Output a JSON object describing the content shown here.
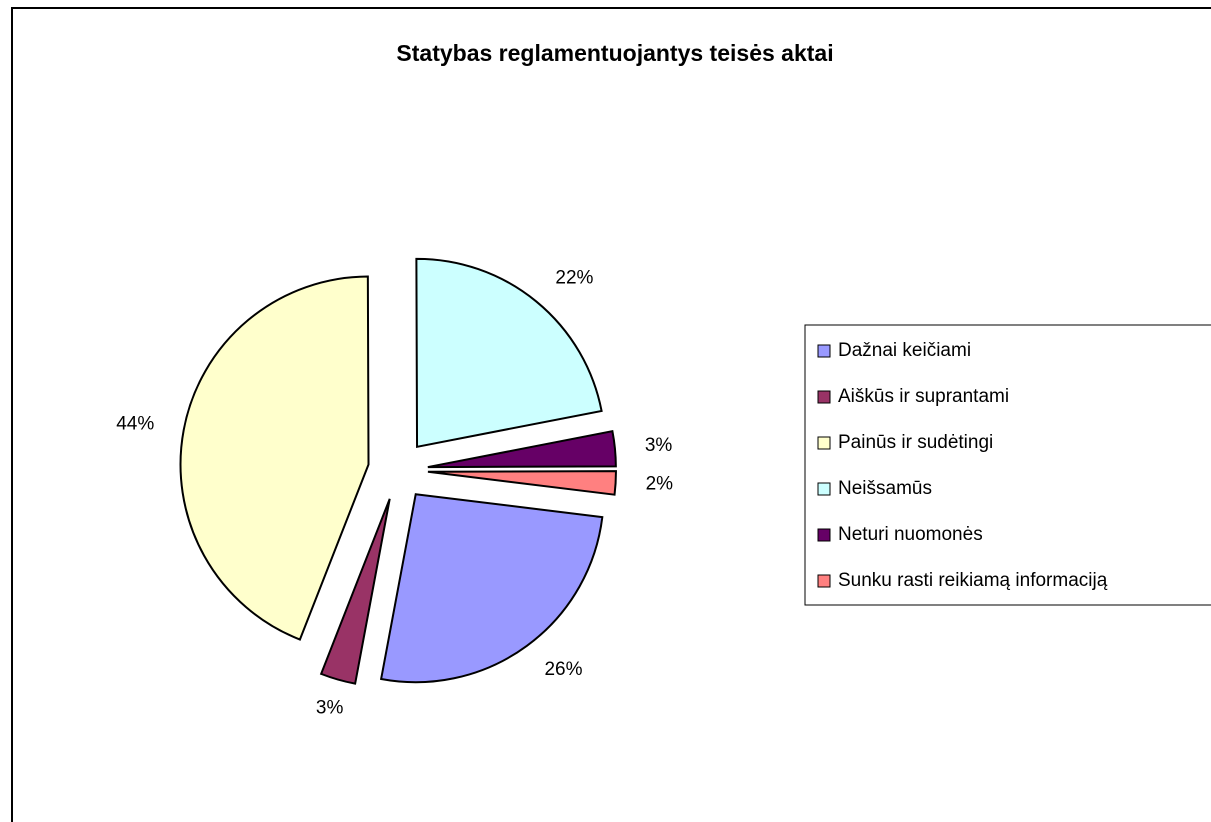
{
  "chart_data": {
    "type": "pie",
    "title": "Statybas reglamentuojantys teisės aktai",
    "categories": [
      "Dažnai keičiami",
      "Aiškūs ir suprantami",
      "Painūs ir sudėtingi",
      "Neišsamūs",
      "Neturi nuomonės",
      "Sunku rasti reikiamą informaciją"
    ],
    "values": [
      26,
      3,
      44,
      22,
      3,
      2
    ],
    "value_labels": [
      "26%",
      "3%",
      "44%",
      "22%",
      "3%",
      "2%"
    ],
    "colors": [
      "#9999ff",
      "#993366",
      "#ffffcc",
      "#ccffff",
      "#660066",
      "#ff8080"
    ],
    "legend": "right"
  }
}
